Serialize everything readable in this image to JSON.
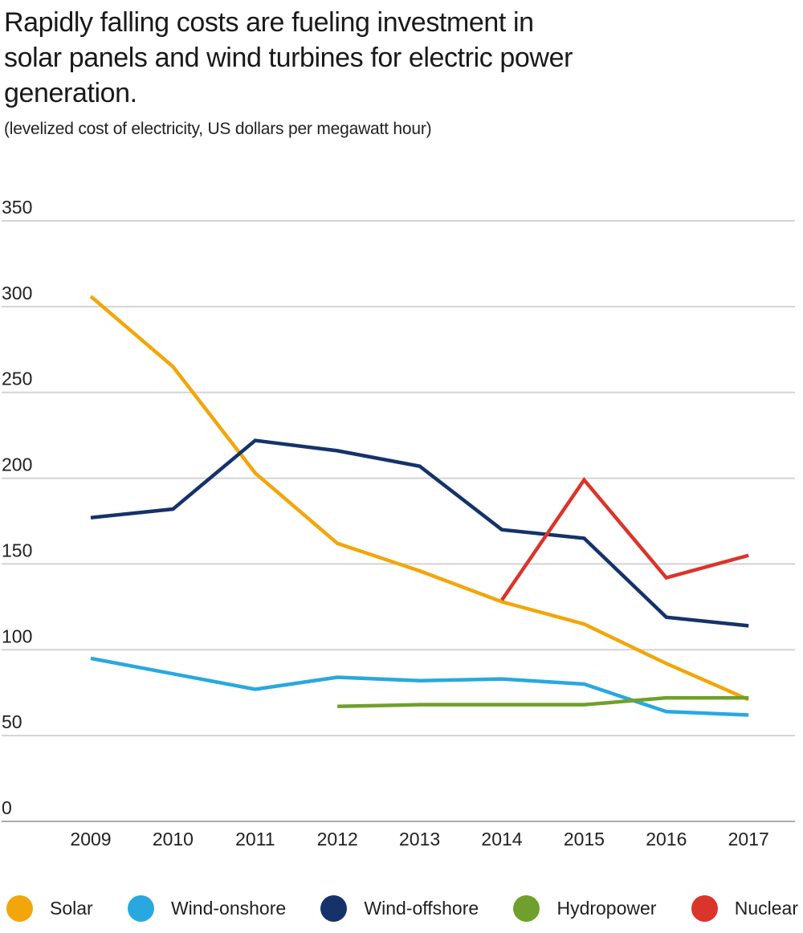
{
  "header": {
    "title_lines": [
      "Rapidly falling costs are fueling investment in",
      "solar panels and wind turbines for electric power",
      "generation."
    ],
    "subtitle": "(levelized cost of electricity, US dollars per megawatt hour)"
  },
  "chart_data": {
    "type": "line",
    "title": "Rapidly falling costs are fueling investment in solar panels and wind turbines for electric power generation.",
    "ylabel": "(levelized cost of electricity, US dollars per megawatt hour)",
    "xlabel": "",
    "years": [
      2009,
      2010,
      2011,
      2012,
      2013,
      2014,
      2015,
      2016,
      2017
    ],
    "y_ticks": [
      0,
      50,
      100,
      150,
      200,
      250,
      300,
      350
    ],
    "ylim": [
      0,
      350
    ],
    "grid": "horizontal",
    "legend_position": "bottom",
    "colors": {
      "grid": "#D4D4D4",
      "axis_zero": "#ACACAC",
      "tick_text": "#212121"
    },
    "series": [
      {
        "name": "Solar",
        "color": "#F2A60A",
        "start_year": 2009,
        "values": [
          306,
          265,
          203,
          162,
          146,
          128,
          115,
          92,
          71
        ]
      },
      {
        "name": "Wind-onshore",
        "color": "#29A8E0",
        "start_year": 2009,
        "values": [
          95,
          86,
          77,
          84,
          82,
          83,
          80,
          64,
          62
        ]
      },
      {
        "name": "Wind-offshore",
        "color": "#15326B",
        "start_year": 2009,
        "values": [
          177,
          182,
          222,
          216,
          207,
          170,
          165,
          119,
          114
        ]
      },
      {
        "name": "Hydropower",
        "color": "#6FA02B",
        "start_year": 2012,
        "values": [
          67,
          68,
          68,
          68,
          72,
          72
        ]
      },
      {
        "name": "Nuclear",
        "color": "#DB342B",
        "start_year": 2014,
        "values": [
          129,
          199,
          142,
          155
        ]
      }
    ]
  }
}
